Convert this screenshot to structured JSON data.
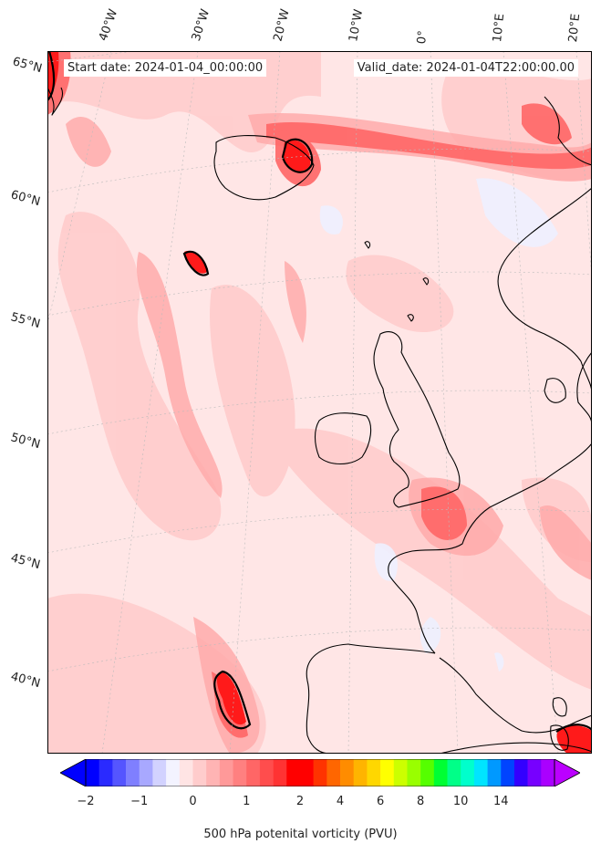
{
  "start_date": "Start date: 2024-01-04_00:00:00",
  "valid_date": "Valid_date: 2024-01-04T22:00:00.00",
  "lon_labels": [
    "40°W",
    "30°W",
    "20°W",
    "10°W",
    "0°",
    "10°E",
    "20°E"
  ],
  "lat_labels": [
    "65°N",
    "60°N",
    "55°N",
    "50°N",
    "45°N",
    "40°N"
  ],
  "colorbar": {
    "label": "500 hPa potenital vorticity (PVU)",
    "ticks": [
      "−2",
      "−1",
      "0",
      "1",
      "2",
      "4",
      "6",
      "8",
      "10",
      "14"
    ],
    "colors": [
      "#0000ff",
      "#2a2aff",
      "#5555ff",
      "#7f7fff",
      "#a8a8ff",
      "#d2d2ff",
      "#f3f3ff",
      "#ffe4e4",
      "#ffcccc",
      "#ffb4b4",
      "#ff9999",
      "#ff8080",
      "#ff6666",
      "#ff4d4d",
      "#ff3333",
      "#ff0000",
      "#ff0000",
      "#ff3300",
      "#ff6600",
      "#ff8c00",
      "#ffb400",
      "#ffd700",
      "#ffff00",
      "#ccff00",
      "#99ff00",
      "#55ff00",
      "#00ff33",
      "#00ff88",
      "#00ffcc",
      "#00e5ff",
      "#0099ff",
      "#0044ff",
      "#3300ff",
      "#7700ff",
      "#aa00ff"
    ],
    "under_color": "#0000ff",
    "over_color": "#bb00ff"
  }
}
